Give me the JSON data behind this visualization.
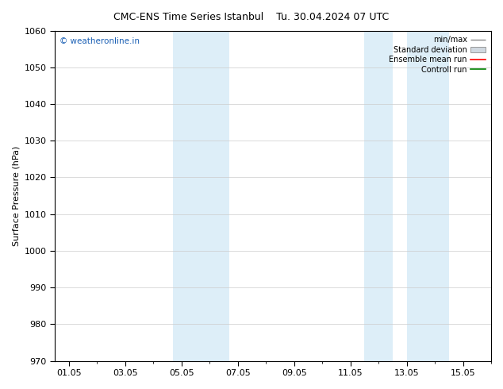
{
  "title_left": "CMC-ENS Time Series Istanbul",
  "title_right": "Tu. 30.04.2024 07 UTC",
  "ylabel": "Surface Pressure (hPa)",
  "ylim": [
    970,
    1060
  ],
  "yticks": [
    970,
    980,
    990,
    1000,
    1010,
    1020,
    1030,
    1040,
    1050,
    1060
  ],
  "xtick_labels": [
    "01.05",
    "03.05",
    "05.05",
    "07.05",
    "09.05",
    "11.05",
    "13.05",
    "15.05"
  ],
  "xtick_positions": [
    0,
    2,
    4,
    6,
    8,
    10,
    12,
    14
  ],
  "xlim": [
    -0.5,
    15.0
  ],
  "shaded_bands": [
    {
      "x_start": 3.7,
      "x_end": 5.7,
      "color": "#ddeef8"
    },
    {
      "x_start": 10.5,
      "x_end": 11.5,
      "color": "#ddeef8"
    },
    {
      "x_start": 12.0,
      "x_end": 13.5,
      "color": "#ddeef8"
    }
  ],
  "watermark": "© weatheronline.in",
  "watermark_color": "#1a5fb4",
  "bg_color": "#ffffff",
  "plot_bg_color": "#ffffff",
  "grid_color": "#cccccc",
  "legend_fontsize": 7,
  "title_fontsize": 9,
  "axis_fontsize": 8
}
